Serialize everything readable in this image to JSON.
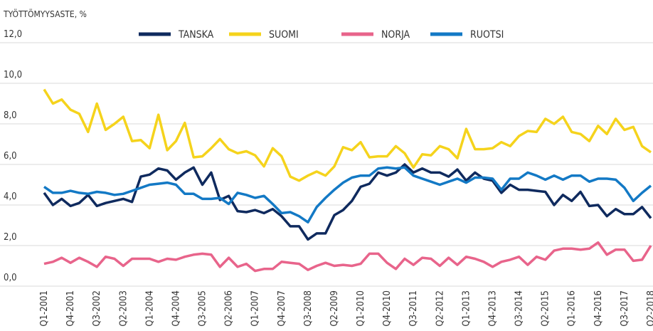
{
  "chart_data": {
    "type": "line",
    "title": "TYÖTTÖMYYSASTE, %",
    "categories": [
      "Q1-2001",
      null,
      null,
      "Q4-2001",
      null,
      null,
      "Q3-2002",
      null,
      null,
      "Q2-2003",
      null,
      null,
      "Q1-2004",
      null,
      null,
      "Q4-2004",
      null,
      null,
      "Q3-2005",
      null,
      null,
      "Q2-2006",
      null,
      null,
      "Q1-2007",
      null,
      null,
      "Q4-2007",
      null,
      null,
      "Q3-2008",
      null,
      null,
      "Q2-2009",
      null,
      null,
      "Q1-2010",
      null,
      null,
      "Q4-2010",
      null,
      null,
      "Q3-2011",
      null,
      null,
      "Q2-2012",
      null,
      null,
      "Q1-2013",
      null,
      null,
      "Q4-2013",
      null,
      null,
      "Q3-2014",
      null,
      null,
      "Q2-2015",
      null,
      null,
      "Q1-2016",
      null,
      null,
      "Q4-2016",
      null,
      null,
      "Q3-2017",
      null,
      null,
      "Q2-2018"
    ],
    "series": [
      {
        "name": "TANSKA",
        "color": "#0f2a5e",
        "values": [
          4.6,
          4.0,
          4.3,
          3.95,
          4.1,
          4.5,
          3.95,
          4.1,
          4.2,
          4.3,
          4.15,
          5.4,
          5.5,
          5.8,
          5.7,
          5.25,
          5.6,
          5.85,
          5.0,
          5.6,
          4.25,
          4.45,
          3.7,
          3.65,
          3.75,
          3.6,
          3.8,
          3.45,
          2.95,
          2.95,
          2.3,
          2.6,
          2.6,
          3.5,
          3.75,
          4.2,
          4.9,
          5.05,
          5.6,
          5.45,
          5.6,
          6.0,
          5.6,
          5.8,
          5.6,
          5.6,
          5.4,
          5.75,
          5.2,
          5.6,
          5.3,
          5.2,
          4.6,
          5.0,
          4.75,
          4.75,
          4.7,
          4.65,
          4.0,
          4.5,
          4.2,
          4.65,
          3.95,
          4.0,
          3.45,
          3.8,
          3.55,
          3.55,
          3.9,
          3.35
        ]
      },
      {
        "name": "SUOMI",
        "color": "#f5d31c",
        "values": [
          9.7,
          9.0,
          9.2,
          8.7,
          8.5,
          7.6,
          9.0,
          7.7,
          8.0,
          8.35,
          7.15,
          7.2,
          6.8,
          8.45,
          6.7,
          7.15,
          8.05,
          6.35,
          6.4,
          6.8,
          7.25,
          6.75,
          6.55,
          6.65,
          6.45,
          5.9,
          6.8,
          6.4,
          5.4,
          5.2,
          5.45,
          5.65,
          5.45,
          5.9,
          6.85,
          6.7,
          7.1,
          6.35,
          6.4,
          6.4,
          6.9,
          6.55,
          5.85,
          6.5,
          6.45,
          6.9,
          6.75,
          6.3,
          7.75,
          6.75,
          6.75,
          6.8,
          7.1,
          6.9,
          7.4,
          7.65,
          7.6,
          8.25,
          8.0,
          8.35,
          7.6,
          7.5,
          7.15,
          7.9,
          7.5,
          8.25,
          7.7,
          7.85,
          6.9,
          6.6
        ]
      },
      {
        "name": "NORJA",
        "color": "#e8648b",
        "values": [
          1.1,
          1.2,
          1.4,
          1.15,
          1.4,
          1.2,
          0.95,
          1.45,
          1.35,
          1.0,
          1.35,
          1.35,
          1.35,
          1.2,
          1.35,
          1.3,
          1.45,
          1.55,
          1.6,
          1.55,
          0.95,
          1.4,
          0.95,
          1.1,
          0.75,
          0.85,
          0.85,
          1.2,
          1.15,
          1.1,
          0.8,
          1.0,
          1.15,
          1.0,
          1.05,
          1.0,
          1.1,
          1.6,
          1.6,
          1.15,
          0.85,
          1.35,
          1.05,
          1.4,
          1.35,
          1.0,
          1.4,
          1.05,
          1.45,
          1.35,
          1.2,
          0.95,
          1.2,
          1.3,
          1.45,
          1.05,
          1.45,
          1.3,
          1.75,
          1.85,
          1.85,
          1.8,
          1.85,
          2.15,
          1.55,
          1.8,
          1.8,
          1.25,
          1.3,
          2.0
        ]
      },
      {
        "name": "RUOTSI",
        "color": "#1379c5",
        "values": [
          4.9,
          4.6,
          4.6,
          4.7,
          4.6,
          4.55,
          4.65,
          4.6,
          4.5,
          4.55,
          4.7,
          4.85,
          5.0,
          5.05,
          5.1,
          5.0,
          4.55,
          4.55,
          4.3,
          4.3,
          4.35,
          4.05,
          4.6,
          4.5,
          4.35,
          4.45,
          4.05,
          3.6,
          3.65,
          3.45,
          3.15,
          3.9,
          4.35,
          4.75,
          5.1,
          5.35,
          5.45,
          5.45,
          5.8,
          5.85,
          5.8,
          5.85,
          5.45,
          5.3,
          5.15,
          5.0,
          5.15,
          5.3,
          5.1,
          5.35,
          5.35,
          5.3,
          4.75,
          5.3,
          5.3,
          5.6,
          5.45,
          5.25,
          5.45,
          5.25,
          5.45,
          5.45,
          5.15,
          5.3,
          5.3,
          5.25,
          4.85,
          4.2,
          4.6,
          4.95
        ]
      }
    ],
    "ylim": [
      0,
      12
    ],
    "yticks": [
      {
        "value": 0,
        "label": "0,0"
      },
      {
        "value": 2,
        "label": "2,0"
      },
      {
        "value": 4,
        "label": "4,0"
      },
      {
        "value": 6,
        "label": "6,0"
      },
      {
        "value": 8,
        "label": "8,0"
      },
      {
        "value": 10,
        "label": "10,0"
      },
      {
        "value": 12,
        "label": "12,0"
      }
    ],
    "grid": true,
    "legend": "top"
  }
}
